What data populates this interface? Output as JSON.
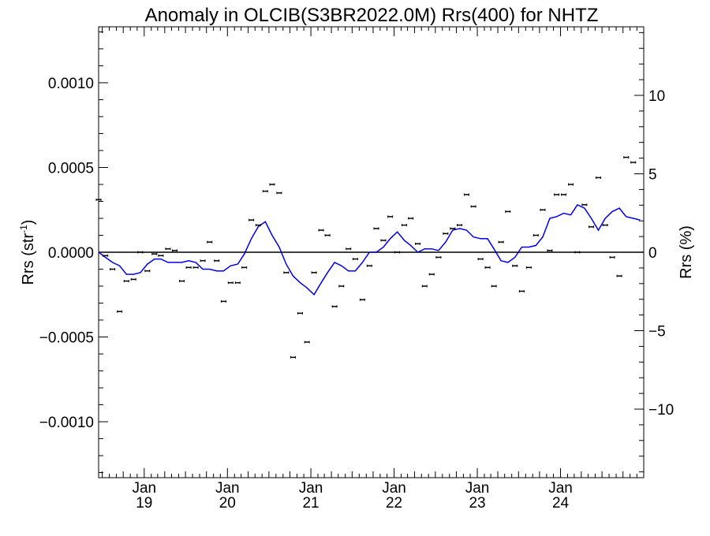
{
  "chart_data": {
    "type": "scatter",
    "title": "Anomaly in OLCIB(S3BR2022.0M) Rrs(400) for NHTZ",
    "ylabel_left_base": "Rrs (str",
    "ylabel_left_sup": "-1",
    "ylabel_left_end": ")",
    "ylabel_right": "Rrs (%)",
    "ylim": [
      -0.00133,
      0.00133
    ],
    "ylim_right": [
      -14.37,
      14.37
    ],
    "xlim": [
      "2018-06-15",
      "2024-12-31"
    ],
    "grid": false,
    "left_ticks": [
      {
        "value": 0.001,
        "label": "0.0010"
      },
      {
        "value": 0.0005,
        "label": "0.0005"
      },
      {
        "value": 0.0,
        "label": "0.0000"
      },
      {
        "value": -0.0005,
        "label": "−0.0005"
      },
      {
        "value": -0.001,
        "label": "−0.0010"
      }
    ],
    "right_ticks": [
      {
        "value": 10,
        "label": "10"
      },
      {
        "value": 5,
        "label": "5"
      },
      {
        "value": 0,
        "label": "0"
      },
      {
        "value": -5,
        "label": "−5"
      },
      {
        "value": -10,
        "label": "−10"
      }
    ],
    "x_ticks": [
      {
        "date": "2019-01-01",
        "month": "Jan",
        "year": "19"
      },
      {
        "date": "2020-01-01",
        "month": "Jan",
        "year": "20"
      },
      {
        "date": "2021-01-01",
        "month": "Jan",
        "year": "21"
      },
      {
        "date": "2022-01-01",
        "month": "Jan",
        "year": "22"
      },
      {
        "date": "2023-01-01",
        "month": "Jan",
        "year": "23"
      },
      {
        "date": "2024-01-01",
        "month": "Jan",
        "year": "24"
      }
    ],
    "series": [
      {
        "kind": "points_with_error",
        "color": "#000000",
        "points": [
          [
            "2018-06-15",
            0.00031
          ],
          [
            "2018-07-15",
            -2e-05
          ],
          [
            "2018-08-15",
            -0.0001
          ],
          [
            "2018-09-15",
            -0.00035
          ],
          [
            "2018-10-15",
            -0.00017
          ],
          [
            "2018-11-15",
            -0.00016
          ],
          [
            "2018-12-15",
            0.0
          ],
          [
            "2019-01-15",
            -0.00011
          ],
          [
            "2019-02-15",
            -1e-05
          ],
          [
            "2019-03-15",
            -2e-05
          ],
          [
            "2019-04-15",
            2e-05
          ],
          [
            "2019-05-15",
            1e-05
          ],
          [
            "2019-06-15",
            -0.00017
          ],
          [
            "2019-07-15",
            -9e-05
          ],
          [
            "2019-08-15",
            -9e-05
          ],
          [
            "2019-09-15",
            -5e-05
          ],
          [
            "2019-10-15",
            6e-05
          ],
          [
            "2019-11-15",
            -5e-05
          ],
          [
            "2019-12-15",
            -0.00029
          ],
          [
            "2020-01-15",
            -0.00018
          ],
          [
            "2020-02-15",
            -0.00018
          ],
          [
            "2020-03-15",
            -9e-05
          ],
          [
            "2020-04-15",
            0.00019
          ],
          [
            "2020-05-15",
            0.00016
          ],
          [
            "2020-06-15",
            0.00036
          ],
          [
            "2020-07-15",
            0.0004
          ],
          [
            "2020-08-15",
            0.00035
          ],
          [
            "2020-09-15",
            -0.00012
          ],
          [
            "2020-10-15",
            -0.00062
          ],
          [
            "2020-11-15",
            -0.00036
          ],
          [
            "2020-12-15",
            -0.00053
          ],
          [
            "2021-01-15",
            -0.00012
          ],
          [
            "2021-02-15",
            0.00013
          ],
          [
            "2021-03-15",
            0.0001
          ],
          [
            "2021-04-15",
            -0.00032
          ],
          [
            "2021-05-15",
            -0.0002
          ],
          [
            "2021-06-15",
            2e-05
          ],
          [
            "2021-07-15",
            -4e-05
          ],
          [
            "2021-08-15",
            -0.00028
          ],
          [
            "2021-09-15",
            -8e-05
          ],
          [
            "2021-10-15",
            0.00014
          ],
          [
            "2021-11-15",
            7e-05
          ],
          [
            "2021-12-15",
            0.00021
          ],
          [
            "2022-01-15",
            0.0
          ],
          [
            "2022-02-15",
            0.00016
          ],
          [
            "2022-03-15",
            0.0002
          ],
          [
            "2022-04-15",
            5e-05
          ],
          [
            "2022-05-15",
            -0.0002
          ],
          [
            "2022-06-15",
            -0.00013
          ],
          [
            "2022-07-15",
            -3e-05
          ],
          [
            "2022-08-15",
            0.00011
          ],
          [
            "2022-09-15",
            0.00014
          ],
          [
            "2022-10-15",
            0.00016
          ],
          [
            "2022-11-15",
            0.00034
          ],
          [
            "2022-12-15",
            0.00027
          ],
          [
            "2023-01-15",
            -4e-05
          ],
          [
            "2023-02-15",
            -9e-05
          ],
          [
            "2023-03-15",
            -0.0002
          ],
          [
            "2023-04-15",
            6e-05
          ],
          [
            "2023-05-15",
            0.00024
          ],
          [
            "2023-06-15",
            -8e-05
          ],
          [
            "2023-07-15",
            -0.00023
          ],
          [
            "2023-08-15",
            -9e-05
          ],
          [
            "2023-09-15",
            0.0001
          ],
          [
            "2023-10-15",
            0.00025
          ],
          [
            "2023-11-15",
            1e-05
          ],
          [
            "2023-12-15",
            0.00034
          ],
          [
            "2024-01-15",
            0.00034
          ],
          [
            "2024-02-15",
            0.0004
          ],
          [
            "2024-03-15",
            0.0
          ],
          [
            "2024-04-15",
            0.00028
          ],
          [
            "2024-05-15",
            0.00015
          ],
          [
            "2024-06-15",
            0.00044
          ],
          [
            "2024-07-15",
            0.00016
          ],
          [
            "2024-08-15",
            -3e-05
          ],
          [
            "2024-09-15",
            -0.00014
          ],
          [
            "2024-10-15",
            0.00056
          ],
          [
            "2024-11-15",
            0.00053
          ]
        ]
      },
      {
        "kind": "line",
        "color": "#0000ee",
        "points": [
          [
            "2018-06-15",
            0.0
          ],
          [
            "2018-07-15",
            -3e-05
          ],
          [
            "2018-08-15",
            -6e-05
          ],
          [
            "2018-09-15",
            -8e-05
          ],
          [
            "2018-10-15",
            -0.00013
          ],
          [
            "2018-11-15",
            -0.00013
          ],
          [
            "2018-12-15",
            -0.00012
          ],
          [
            "2019-01-15",
            -7e-05
          ],
          [
            "2019-02-15",
            -4e-05
          ],
          [
            "2019-03-15",
            -4e-05
          ],
          [
            "2019-04-15",
            -6e-05
          ],
          [
            "2019-05-15",
            -6e-05
          ],
          [
            "2019-06-15",
            -6e-05
          ],
          [
            "2019-07-15",
            -5e-05
          ],
          [
            "2019-08-15",
            -6e-05
          ],
          [
            "2019-09-15",
            -0.0001
          ],
          [
            "2019-10-15",
            -0.0001
          ],
          [
            "2019-11-15",
            -0.00011
          ],
          [
            "2019-12-15",
            -0.00011
          ],
          [
            "2020-01-15",
            -8e-05
          ],
          [
            "2020-02-15",
            -7e-05
          ],
          [
            "2020-03-15",
            -1e-05
          ],
          [
            "2020-04-15",
            8e-05
          ],
          [
            "2020-05-15",
            0.00015
          ],
          [
            "2020-06-15",
            0.00018
          ],
          [
            "2020-07-15",
            0.0001
          ],
          [
            "2020-08-15",
            3e-05
          ],
          [
            "2020-09-15",
            -7e-05
          ],
          [
            "2020-10-15",
            -0.00014
          ],
          [
            "2020-11-15",
            -0.00018
          ],
          [
            "2020-12-15",
            -0.00021
          ],
          [
            "2021-01-15",
            -0.00025
          ],
          [
            "2021-02-15",
            -0.00018
          ],
          [
            "2021-03-15",
            -0.00012
          ],
          [
            "2021-04-15",
            -6e-05
          ],
          [
            "2021-05-15",
            -8e-05
          ],
          [
            "2021-06-15",
            -0.00011
          ],
          [
            "2021-07-15",
            -0.00011
          ],
          [
            "2021-08-15",
            -6e-05
          ],
          [
            "2021-09-15",
            0.0
          ],
          [
            "2021-10-15",
            0.0
          ],
          [
            "2021-11-15",
            3e-05
          ],
          [
            "2021-12-15",
            8e-05
          ],
          [
            "2022-01-15",
            0.00012
          ],
          [
            "2022-02-15",
            7e-05
          ],
          [
            "2022-03-15",
            4e-05
          ],
          [
            "2022-04-15",
            0.0
          ],
          [
            "2022-05-15",
            2e-05
          ],
          [
            "2022-06-15",
            2e-05
          ],
          [
            "2022-07-15",
            1e-05
          ],
          [
            "2022-08-15",
            6e-05
          ],
          [
            "2022-09-15",
            0.00013
          ],
          [
            "2022-10-15",
            0.00014
          ],
          [
            "2022-11-15",
            0.00013
          ],
          [
            "2022-12-15",
            9e-05
          ],
          [
            "2023-01-15",
            8e-05
          ],
          [
            "2023-02-15",
            8e-05
          ],
          [
            "2023-03-15",
            2e-05
          ],
          [
            "2023-04-15",
            -5e-05
          ],
          [
            "2023-05-15",
            -6e-05
          ],
          [
            "2023-06-15",
            -3e-05
          ],
          [
            "2023-07-15",
            3e-05
          ],
          [
            "2023-08-15",
            3e-05
          ],
          [
            "2023-09-15",
            4e-05
          ],
          [
            "2023-10-15",
            9e-05
          ],
          [
            "2023-11-15",
            0.0002
          ],
          [
            "2023-12-15",
            0.00021
          ],
          [
            "2024-01-15",
            0.00023
          ],
          [
            "2024-02-15",
            0.00022
          ],
          [
            "2024-03-15",
            0.00028
          ],
          [
            "2024-04-15",
            0.00026
          ],
          [
            "2024-05-15",
            0.0002
          ],
          [
            "2024-06-15",
            0.00013
          ],
          [
            "2024-07-15",
            0.0002
          ],
          [
            "2024-08-15",
            0.00024
          ],
          [
            "2024-09-15",
            0.00026
          ],
          [
            "2024-10-15",
            0.00021
          ],
          [
            "2024-11-15",
            0.0002
          ],
          [
            "2024-12-15",
            0.00019
          ]
        ]
      }
    ]
  }
}
